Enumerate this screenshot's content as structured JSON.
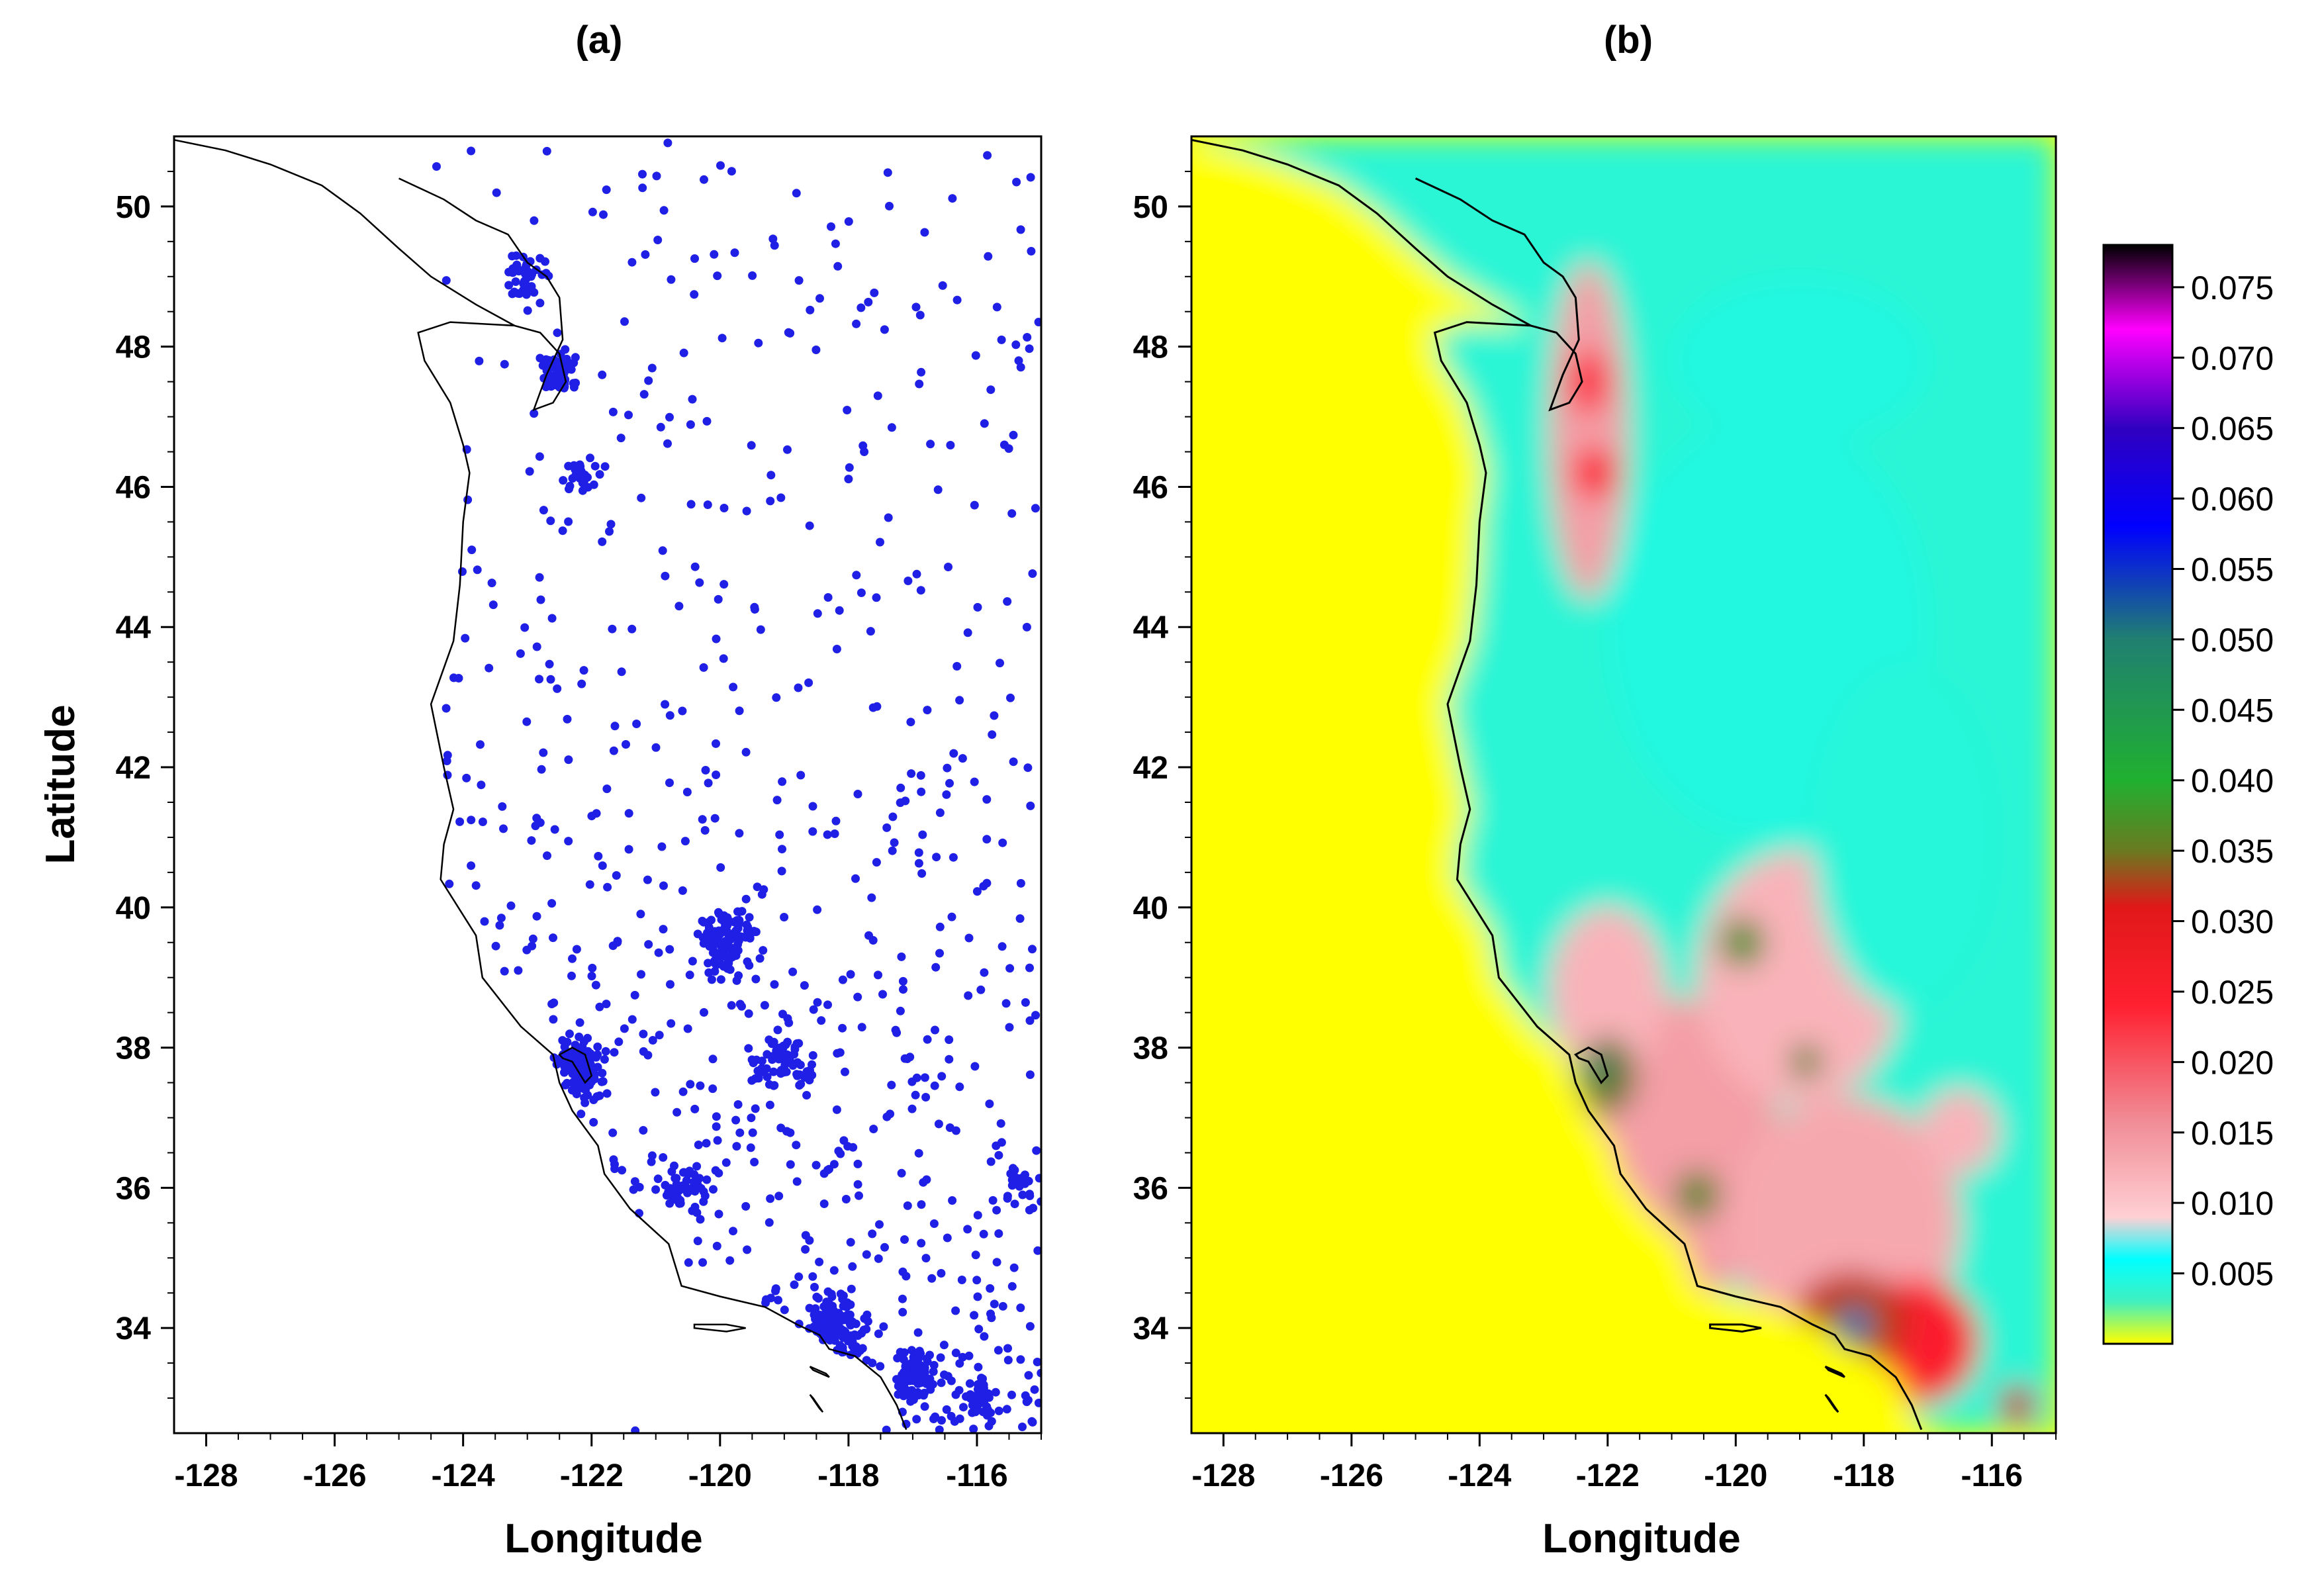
{
  "panels": {
    "a": {
      "title": "(a)",
      "xlabel": "Longitude",
      "ylabel": "Latitude",
      "point_color": "#1f1fe6",
      "description_type": "station-locations"
    },
    "b": {
      "title": "(b)",
      "xlabel": "Longitude"
    }
  },
  "map": {
    "lon_range": [
      -128.5,
      -115
    ],
    "lat_range": [
      32.5,
      51
    ],
    "x_ticks": [
      "-128",
      "-126",
      "-124",
      "-122",
      "-120",
      "-118",
      "-116"
    ],
    "x_tick_values": [
      -128,
      -126,
      -124,
      -122,
      -120,
      -118,
      -116
    ],
    "y_ticks": [
      "34",
      "36",
      "38",
      "40",
      "42",
      "44",
      "46",
      "48",
      "50"
    ],
    "y_tick_values": [
      34,
      36,
      38,
      40,
      42,
      44,
      46,
      48,
      50
    ],
    "coastline": [
      [
        -128.5,
        50.95
      ],
      [
        -127.7,
        50.8
      ],
      [
        -127.0,
        50.6
      ],
      [
        -126.2,
        50.3
      ],
      [
        -125.6,
        49.9
      ],
      [
        -125.0,
        49.4
      ],
      [
        -124.5,
        49.0
      ],
      [
        -123.8,
        48.6
      ],
      [
        -123.2,
        48.3
      ],
      [
        -124.2,
        48.35
      ],
      [
        -124.7,
        48.2
      ],
      [
        -124.6,
        47.8
      ],
      [
        -124.2,
        47.2
      ],
      [
        -124.0,
        46.6
      ],
      [
        -123.9,
        46.2
      ],
      [
        -124.0,
        45.5
      ],
      [
        -124.05,
        44.6
      ],
      [
        -124.15,
        43.8
      ],
      [
        -124.5,
        42.9
      ],
      [
        -124.3,
        42.0
      ],
      [
        -124.15,
        41.4
      ],
      [
        -124.3,
        40.9
      ],
      [
        -124.35,
        40.4
      ],
      [
        -123.8,
        39.6
      ],
      [
        -123.7,
        39.0
      ],
      [
        -123.1,
        38.3
      ],
      [
        -122.6,
        37.9
      ],
      [
        -122.5,
        37.5
      ],
      [
        -122.3,
        37.1
      ],
      [
        -121.9,
        36.6
      ],
      [
        -121.8,
        36.2
      ],
      [
        -121.4,
        35.7
      ],
      [
        -120.8,
        35.2
      ],
      [
        -120.6,
        34.6
      ],
      [
        -120.0,
        34.45
      ],
      [
        -119.3,
        34.3
      ],
      [
        -118.8,
        34.05
      ],
      [
        -118.45,
        33.9
      ],
      [
        -118.3,
        33.7
      ],
      [
        -117.9,
        33.6
      ],
      [
        -117.5,
        33.3
      ],
      [
        -117.25,
        32.9
      ],
      [
        -117.1,
        32.55
      ]
    ],
    "sound_inlet": [
      [
        -123.2,
        48.3
      ],
      [
        -122.8,
        48.2
      ],
      [
        -122.5,
        47.9
      ],
      [
        -122.4,
        47.5
      ],
      [
        -122.6,
        47.2
      ],
      [
        -122.9,
        47.1
      ],
      [
        -122.7,
        47.6
      ],
      [
        -122.45,
        48.1
      ],
      [
        -122.5,
        48.7
      ],
      [
        -122.7,
        49.0
      ],
      [
        -123.0,
        49.2
      ],
      [
        -123.3,
        49.6
      ],
      [
        -123.8,
        49.8
      ],
      [
        -124.3,
        50.1
      ],
      [
        -125.0,
        50.4
      ]
    ],
    "sf_bay": [
      [
        -122.5,
        37.9
      ],
      [
        -122.3,
        38.0
      ],
      [
        -122.1,
        37.9
      ],
      [
        -122.0,
        37.6
      ],
      [
        -122.1,
        37.5
      ],
      [
        -122.3,
        37.8
      ],
      [
        -122.45,
        37.85
      ]
    ],
    "islands": [
      [
        [
          -120.4,
          34.05
        ],
        [
          -119.9,
          34.05
        ],
        [
          -119.6,
          34.0
        ],
        [
          -119.9,
          33.95
        ],
        [
          -120.4,
          34.0
        ]
      ],
      [
        [
          -118.6,
          33.45
        ],
        [
          -118.35,
          33.35
        ],
        [
          -118.3,
          33.3
        ],
        [
          -118.55,
          33.4
        ]
      ],
      [
        [
          -118.6,
          33.05
        ],
        [
          -118.45,
          32.85
        ],
        [
          -118.4,
          32.8
        ],
        [
          -118.55,
          33.0
        ]
      ]
    ]
  },
  "colorbar": {
    "labels": [
      "0.075",
      "0.070",
      "0.065",
      "0.060",
      "0.055",
      "0.050",
      "0.045",
      "0.040",
      "0.035",
      "0.030",
      "0.025",
      "0.020",
      "0.015",
      "0.010",
      "0.005"
    ],
    "values": [
      0.075,
      0.07,
      0.065,
      0.06,
      0.055,
      0.05,
      0.045,
      0.04,
      0.035,
      0.03,
      0.025,
      0.02,
      0.015,
      0.01,
      0.005
    ],
    "vmin": 0.0,
    "vmax": 0.078,
    "stops": [
      {
        "v": 0.0,
        "c": "#ffff00"
      },
      {
        "v": 0.003,
        "c": "#40f0c0"
      },
      {
        "v": 0.006,
        "c": "#00ffff"
      },
      {
        "v": 0.009,
        "c": "#ffd0d4"
      },
      {
        "v": 0.016,
        "c": "#f08a94"
      },
      {
        "v": 0.024,
        "c": "#ff2030"
      },
      {
        "v": 0.031,
        "c": "#e01818"
      },
      {
        "v": 0.035,
        "c": "#6a7a20"
      },
      {
        "v": 0.04,
        "c": "#20b030"
      },
      {
        "v": 0.05,
        "c": "#208070"
      },
      {
        "v": 0.058,
        "c": "#0000ff"
      },
      {
        "v": 0.065,
        "c": "#3000c0"
      },
      {
        "v": 0.072,
        "c": "#ff00ff"
      },
      {
        "v": 0.078,
        "c": "#000000"
      }
    ]
  }
}
